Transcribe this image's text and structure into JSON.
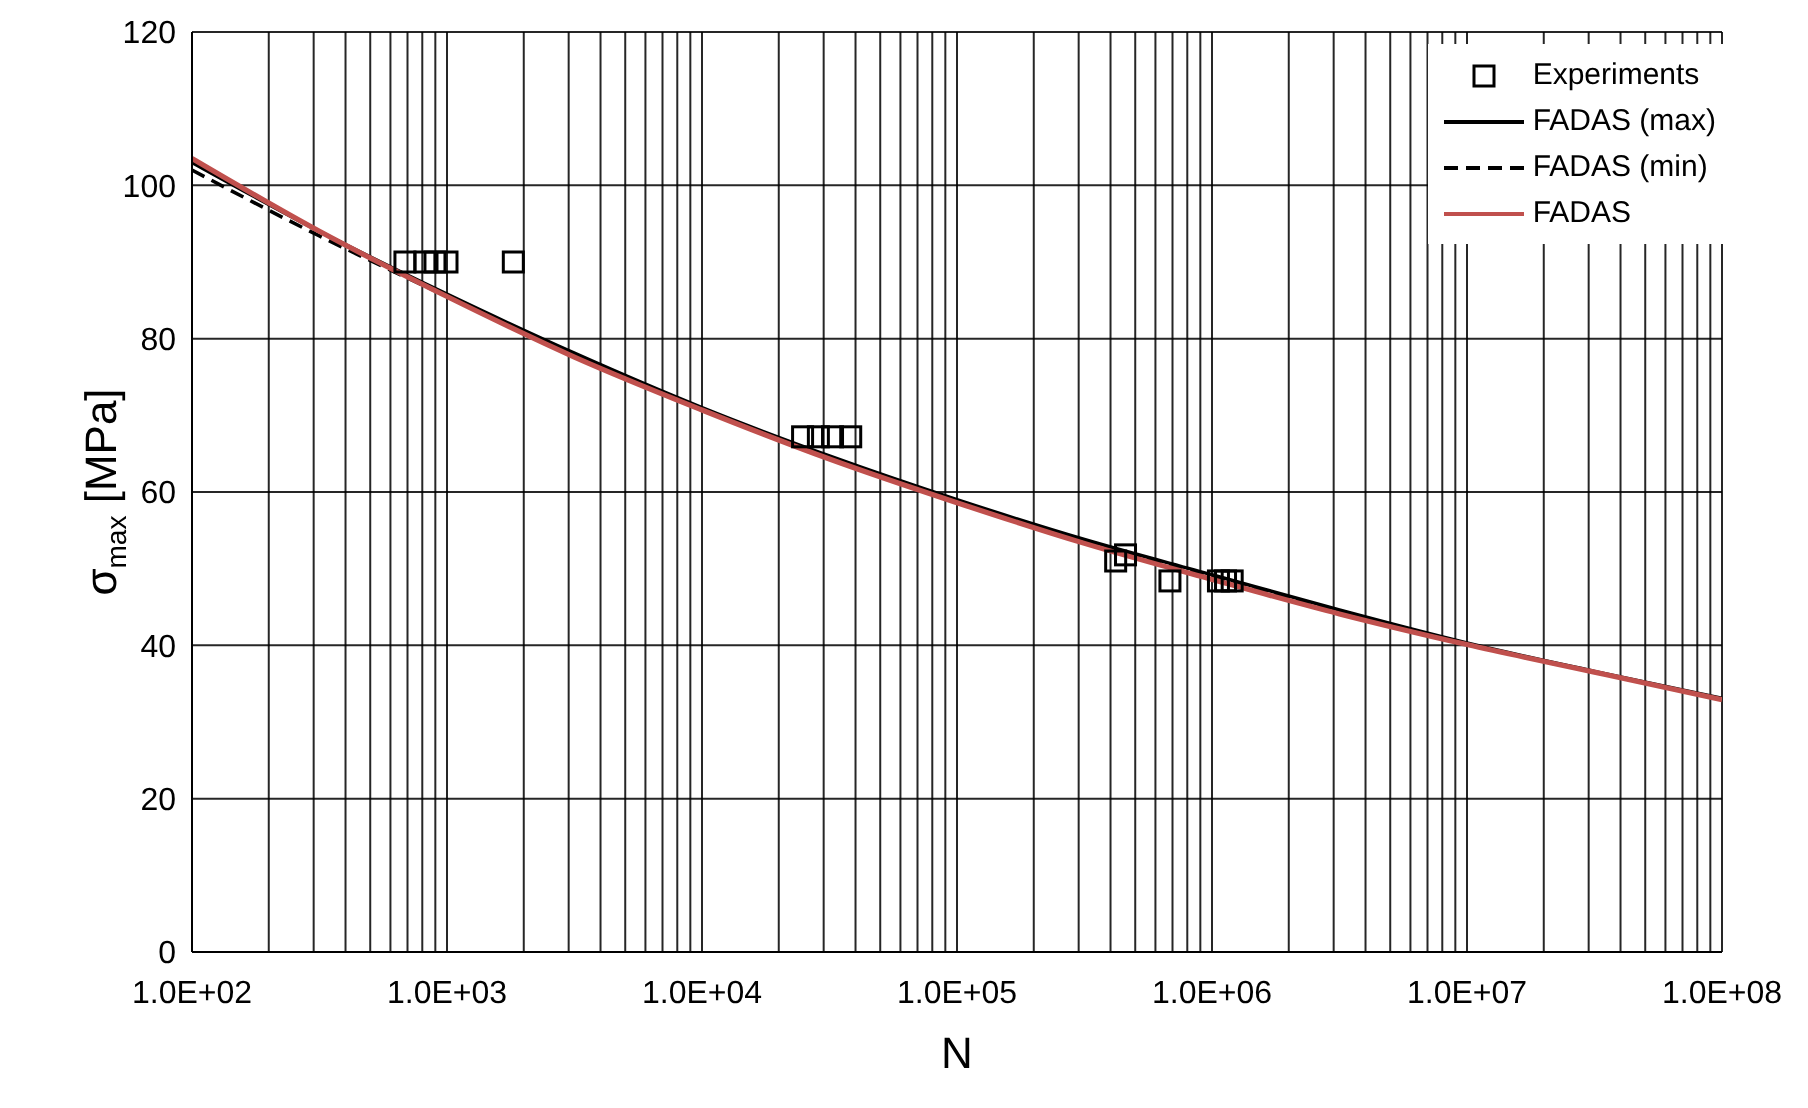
{
  "chart_data": {
    "type": "line",
    "xlabel": "N",
    "ylabel": "σ$_{max}$ [MPa]",
    "log": "x",
    "grid": true,
    "legend": "top right",
    "xlim": [
      100,
      100000000
    ],
    "xticks": [
      {
        "value": 100,
        "label": "1.0E+02"
      },
      {
        "value": 200,
        "label": null
      },
      {
        "value": 300,
        "label": null
      },
      {
        "value": 400,
        "label": null
      },
      {
        "value": 500,
        "label": null
      },
      {
        "value": 600,
        "label": null
      },
      {
        "value": 700,
        "label": null
      },
      {
        "value": 800,
        "label": null
      },
      {
        "value": 900,
        "label": null
      },
      {
        "value": 1000,
        "label": "1.0E+03"
      },
      {
        "value": 2000,
        "label": null
      },
      {
        "value": 3000,
        "label": null
      },
      {
        "value": 4000,
        "label": null
      },
      {
        "value": 5000,
        "label": null
      },
      {
        "value": 6000,
        "label": null
      },
      {
        "value": 7000,
        "label": null
      },
      {
        "value": 8000,
        "label": null
      },
      {
        "value": 9000,
        "label": null
      },
      {
        "value": 10000,
        "label": "1.0E+04"
      },
      {
        "value": 20000,
        "label": null
      },
      {
        "value": 30000,
        "label": null
      },
      {
        "value": 40000,
        "label": null
      },
      {
        "value": 50000,
        "label": null
      },
      {
        "value": 60000,
        "label": null
      },
      {
        "value": 70000,
        "label": null
      },
      {
        "value": 80000,
        "label": null
      },
      {
        "value": 90000,
        "label": null
      },
      {
        "value": 100000,
        "label": "1.0E+05"
      },
      {
        "value": 200000,
        "label": null
      },
      {
        "value": 300000,
        "label": null
      },
      {
        "value": 400000,
        "label": null
      },
      {
        "value": 500000,
        "label": null
      },
      {
        "value": 600000,
        "label": null
      },
      {
        "value": 700000,
        "label": null
      },
      {
        "value": 800000,
        "label": null
      },
      {
        "value": 900000,
        "label": null
      },
      {
        "value": 1000000,
        "label": "1.0E+06"
      },
      {
        "value": 2000000,
        "label": null
      },
      {
        "value": 3000000,
        "label": null
      },
      {
        "value": 4000000,
        "label": null
      },
      {
        "value": 5000000,
        "label": null
      },
      {
        "value": 6000000,
        "label": null
      },
      {
        "value": 7000000,
        "label": null
      },
      {
        "value": 8000000,
        "label": null
      },
      {
        "value": 9000000,
        "label": null
      },
      {
        "value": 10000000,
        "label": "1.0E+07"
      },
      {
        "value": 20000000,
        "label": null
      },
      {
        "value": 30000000,
        "label": null
      },
      {
        "value": 40000000,
        "label": null
      },
      {
        "value": 50000000,
        "label": null
      },
      {
        "value": 60000000,
        "label": null
      },
      {
        "value": 70000000,
        "label": null
      },
      {
        "value": 80000000,
        "label": null
      },
      {
        "value": 90000000,
        "label": null
      },
      {
        "value": 100000000,
        "label": "1.0E+08"
      }
    ],
    "ylim": [
      0,
      120
    ],
    "yticks": [
      0,
      20,
      40,
      60,
      80,
      100,
      120
    ],
    "series": [
      {
        "name": "Experiments",
        "type": "scatter",
        "marker": "square",
        "color": "#000000",
        "x": [
          684,
          819,
          897,
          1000,
          1820,
          24800,
          28600,
          32500,
          38300,
          419000,
          458000,
          684000,
          1060000,
          1130000,
          1200000
        ],
        "values": [
          90,
          90,
          90,
          90,
          90,
          67.2,
          67.2,
          67.2,
          67.2,
          51.0,
          51.8,
          48.4,
          48.4,
          48.4,
          48.4
        ]
      },
      {
        "name": "FADAS (max)",
        "line_style": "solid",
        "color": "#000000",
        "x": [
          100,
          316,
          1000,
          3160,
          10000,
          31600,
          100000,
          316000,
          1000000,
          3160000,
          10000000,
          31600000,
          100000000
        ],
        "values": [
          103,
          94,
          85.8,
          78.1,
          71.0,
          64.7,
          59.0,
          53.8,
          49.2,
          44.6,
          40.3,
          36.6,
          33.1
        ]
      },
      {
        "name": "FADAS (min)",
        "line_style": "dashed",
        "color": "#000000",
        "x": [
          100,
          316,
          1000,
          3160,
          10000,
          31600,
          100000,
          316000,
          1000000,
          3160000,
          10000000,
          31600000,
          100000000
        ],
        "values": [
          102,
          93.4,
          85.5,
          77.8,
          70.8,
          64.5,
          58.8,
          53.6,
          49.0,
          44.5,
          40.2,
          36.5,
          33.0
        ]
      },
      {
        "name": "FADAS",
        "line_style": "solid",
        "color": "#c0504d",
        "x": [
          100,
          316,
          1000,
          3160,
          10000,
          31600,
          100000,
          316000,
          1000000,
          3160000,
          10000000,
          31600000,
          100000000
        ],
        "values": [
          103.5,
          94,
          85.5,
          77.6,
          70.7,
          64.3,
          58.6,
          53.3,
          48.6,
          44.1,
          40.1,
          36.5,
          32.9
        ]
      }
    ]
  }
}
